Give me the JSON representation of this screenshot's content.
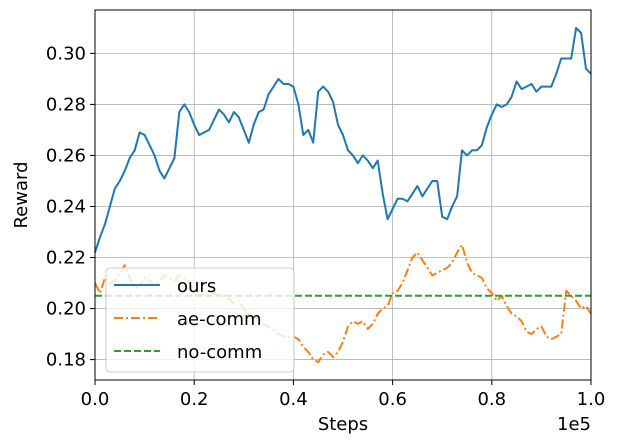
{
  "chart_data": {
    "type": "line",
    "xlabel": "Steps",
    "ylabel": "Reward",
    "x_offset_label": "1e5",
    "xlim": [
      0.0,
      1.0
    ],
    "ylim": [
      0.172,
      0.317
    ],
    "x_ticks": [
      0.0,
      0.2,
      0.4,
      0.6,
      0.8,
      1.0
    ],
    "x_tick_labels": [
      "0.0",
      "0.2",
      "0.4",
      "0.6",
      "0.8",
      "1.0"
    ],
    "y_ticks": [
      0.18,
      0.2,
      0.22,
      0.24,
      0.26,
      0.28,
      0.3
    ],
    "y_tick_labels": [
      "0.18",
      "0.20",
      "0.22",
      "0.24",
      "0.26",
      "0.28",
      "0.30"
    ],
    "grid": true,
    "legend_position": "lower-left",
    "series": [
      {
        "name": "ours",
        "color": "#1f77b4",
        "style": "solid",
        "x": [
          0.0,
          0.01,
          0.02,
          0.03,
          0.04,
          0.05,
          0.06,
          0.07,
          0.08,
          0.09,
          0.1,
          0.11,
          0.12,
          0.13,
          0.14,
          0.15,
          0.16,
          0.17,
          0.18,
          0.19,
          0.2,
          0.21,
          0.22,
          0.23,
          0.24,
          0.25,
          0.26,
          0.27,
          0.28,
          0.29,
          0.3,
          0.31,
          0.32,
          0.33,
          0.34,
          0.35,
          0.36,
          0.37,
          0.38,
          0.39,
          0.4,
          0.41,
          0.42,
          0.43,
          0.44,
          0.45,
          0.46,
          0.47,
          0.48,
          0.49,
          0.5,
          0.51,
          0.52,
          0.53,
          0.54,
          0.55,
          0.56,
          0.57,
          0.58,
          0.59,
          0.6,
          0.61,
          0.62,
          0.63,
          0.64,
          0.65,
          0.66,
          0.67,
          0.68,
          0.69,
          0.7,
          0.71,
          0.72,
          0.73,
          0.74,
          0.75,
          0.76,
          0.77,
          0.78,
          0.79,
          0.8,
          0.81,
          0.82,
          0.83,
          0.84,
          0.85,
          0.86,
          0.87,
          0.88,
          0.89,
          0.9,
          0.91,
          0.92,
          0.93,
          0.94,
          0.95,
          0.96,
          0.97,
          0.98,
          0.99,
          1.0
        ],
        "y": [
          0.222,
          0.228,
          0.233,
          0.24,
          0.247,
          0.25,
          0.254,
          0.259,
          0.262,
          0.269,
          0.268,
          0.264,
          0.26,
          0.254,
          0.251,
          0.255,
          0.259,
          0.277,
          0.28,
          0.277,
          0.272,
          0.268,
          0.269,
          0.27,
          0.274,
          0.278,
          0.276,
          0.273,
          0.277,
          0.275,
          0.27,
          0.265,
          0.272,
          0.277,
          0.278,
          0.284,
          0.287,
          0.29,
          0.288,
          0.288,
          0.287,
          0.28,
          0.268,
          0.27,
          0.265,
          0.285,
          0.287,
          0.285,
          0.281,
          0.272,
          0.268,
          0.262,
          0.26,
          0.257,
          0.26,
          0.258,
          0.255,
          0.258,
          0.245,
          0.235,
          0.239,
          0.243,
          0.243,
          0.242,
          0.245,
          0.248,
          0.244,
          0.247,
          0.25,
          0.25,
          0.236,
          0.235,
          0.24,
          0.244,
          0.262,
          0.26,
          0.262,
          0.262,
          0.264,
          0.271,
          0.276,
          0.28,
          0.279,
          0.28,
          0.283,
          0.289,
          0.286,
          0.287,
          0.288,
          0.285,
          0.287,
          0.287,
          0.287,
          0.292,
          0.298,
          0.298,
          0.298,
          0.31,
          0.308,
          0.294,
          0.292
        ]
      },
      {
        "name": "ae-comm",
        "color": "#ff7f0e",
        "style": "dashdot",
        "x": [
          0.0,
          0.01,
          0.02,
          0.03,
          0.04,
          0.05,
          0.06,
          0.07,
          0.08,
          0.09,
          0.1,
          0.11,
          0.12,
          0.13,
          0.14,
          0.15,
          0.16,
          0.17,
          0.18,
          0.19,
          0.2,
          0.21,
          0.22,
          0.23,
          0.24,
          0.25,
          0.26,
          0.27,
          0.28,
          0.29,
          0.3,
          0.31,
          0.32,
          0.33,
          0.34,
          0.35,
          0.36,
          0.37,
          0.38,
          0.39,
          0.4,
          0.41,
          0.42,
          0.43,
          0.44,
          0.45,
          0.46,
          0.47,
          0.48,
          0.49,
          0.5,
          0.51,
          0.52,
          0.53,
          0.54,
          0.55,
          0.56,
          0.57,
          0.58,
          0.59,
          0.6,
          0.61,
          0.62,
          0.63,
          0.64,
          0.65,
          0.66,
          0.67,
          0.68,
          0.69,
          0.7,
          0.71,
          0.72,
          0.73,
          0.74,
          0.75,
          0.76,
          0.77,
          0.78,
          0.79,
          0.8,
          0.81,
          0.82,
          0.83,
          0.84,
          0.85,
          0.86,
          0.87,
          0.88,
          0.89,
          0.9,
          0.91,
          0.92,
          0.93,
          0.94,
          0.95,
          0.96,
          0.97,
          0.98,
          0.99,
          1.0
        ],
        "y": [
          0.21,
          0.206,
          0.212,
          0.21,
          0.211,
          0.214,
          0.217,
          0.212,
          0.208,
          0.209,
          0.212,
          0.211,
          0.209,
          0.211,
          0.213,
          0.212,
          0.211,
          0.213,
          0.212,
          0.21,
          0.207,
          0.205,
          0.206,
          0.205,
          0.206,
          0.205,
          0.205,
          0.204,
          0.202,
          0.203,
          0.2,
          0.198,
          0.196,
          0.197,
          0.194,
          0.193,
          0.192,
          0.19,
          0.189,
          0.189,
          0.189,
          0.188,
          0.185,
          0.183,
          0.18,
          0.179,
          0.182,
          0.183,
          0.181,
          0.183,
          0.187,
          0.193,
          0.195,
          0.194,
          0.195,
          0.192,
          0.194,
          0.198,
          0.2,
          0.201,
          0.206,
          0.207,
          0.21,
          0.215,
          0.22,
          0.222,
          0.219,
          0.216,
          0.213,
          0.214,
          0.215,
          0.216,
          0.218,
          0.222,
          0.225,
          0.218,
          0.214,
          0.213,
          0.212,
          0.208,
          0.206,
          0.203,
          0.205,
          0.201,
          0.198,
          0.197,
          0.195,
          0.191,
          0.19,
          0.192,
          0.193,
          0.189,
          0.188,
          0.189,
          0.19,
          0.207,
          0.205,
          0.203,
          0.2,
          0.201,
          0.198
        ]
      },
      {
        "name": "no-comm",
        "color": "#2ca02c",
        "style": "dashed",
        "x": [
          0.0,
          1.0
        ],
        "y": [
          0.205,
          0.205
        ]
      }
    ]
  }
}
